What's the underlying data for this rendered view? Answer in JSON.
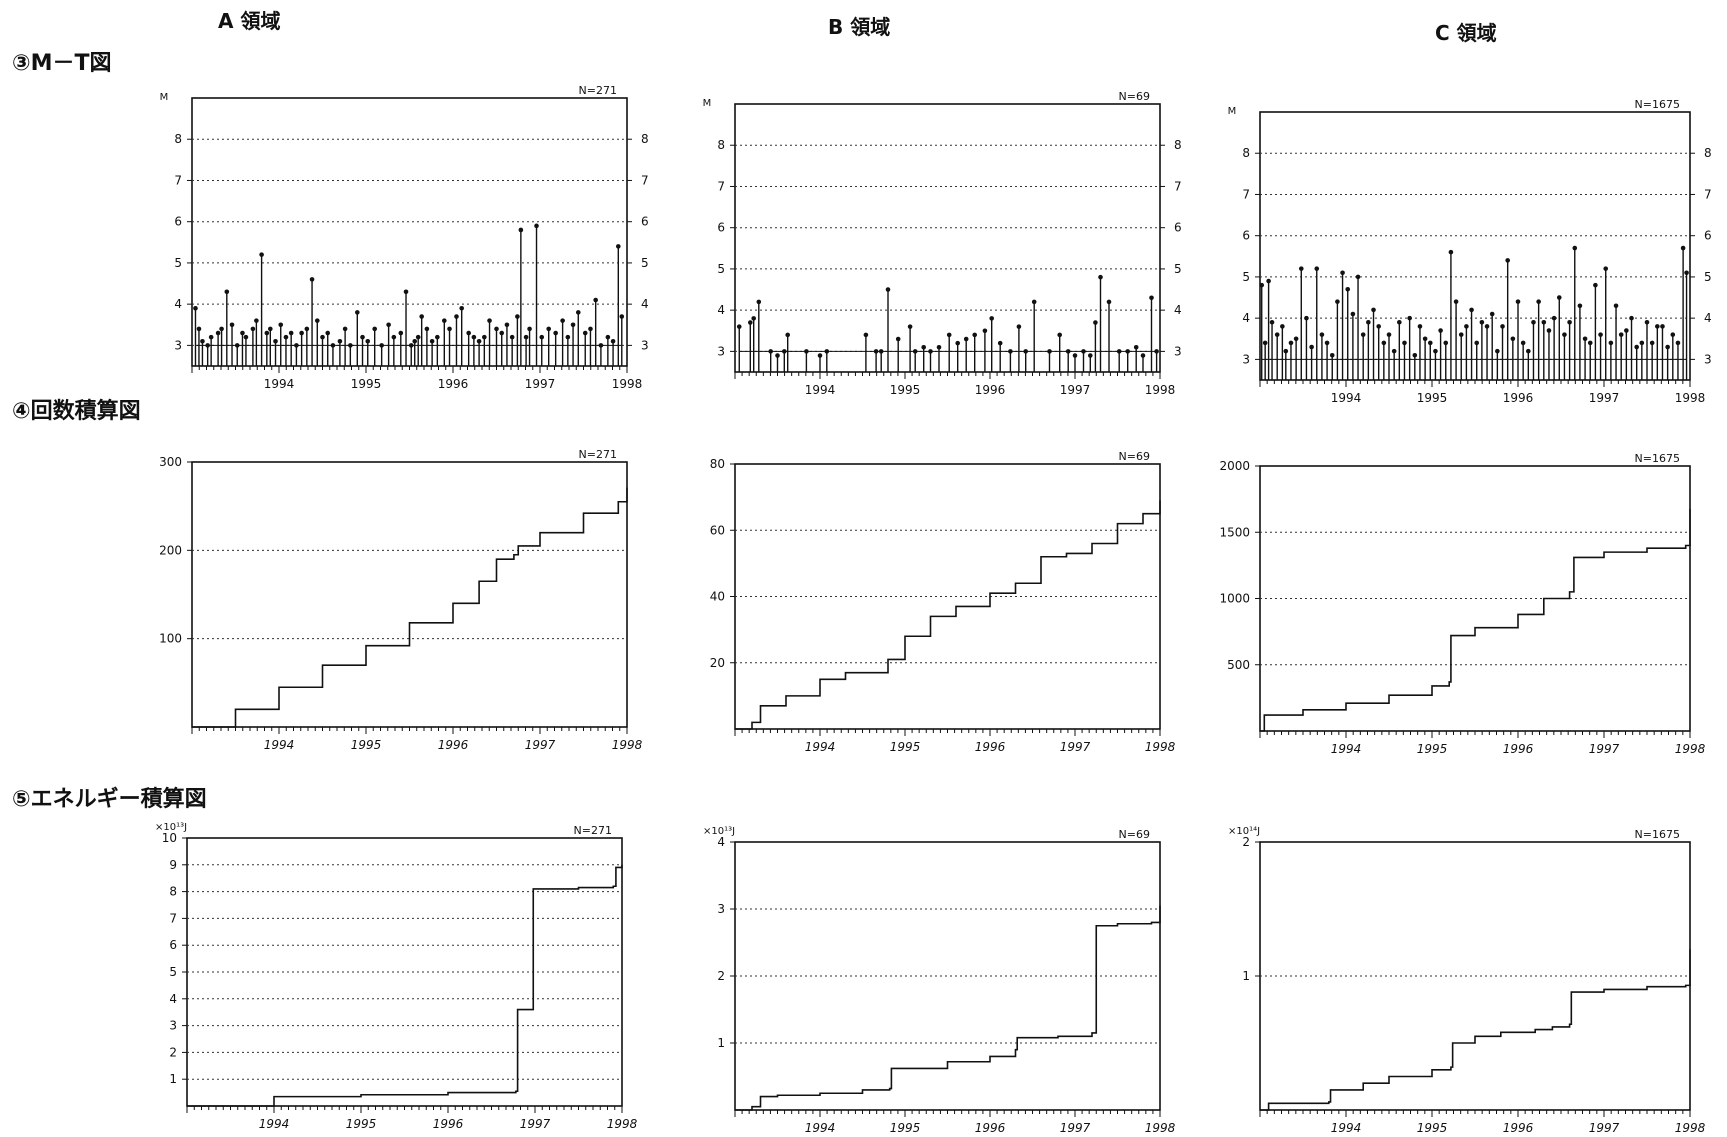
{
  "column_titles": [
    "A 領域",
    "B 領域",
    "C 領域"
  ],
  "row_titles": [
    "③M－T図",
    "④回数積算図",
    "⑤エネルギー積算図"
  ],
  "chart_data": [
    {
      "id": "mt-A",
      "row": 0,
      "col": 0,
      "type": "scatter",
      "style": "stem",
      "n_label": "N=271",
      "ylabel": "M",
      "ylim": [
        2.5,
        9
      ],
      "yticks": [
        3,
        4,
        5,
        6,
        7,
        8
      ],
      "right_ticks": true,
      "xlim": [
        1993.0,
        1998.0
      ],
      "xticks": [
        1994,
        1995,
        1996,
        1997,
        1998
      ],
      "x": [
        1993.04,
        1993.08,
        1993.12,
        1993.18,
        1993.22,
        1993.3,
        1993.34,
        1993.4,
        1993.46,
        1993.52,
        1993.58,
        1993.62,
        1993.7,
        1993.74,
        1993.8,
        1993.86,
        1993.9,
        1993.96,
        1994.02,
        1994.08,
        1994.14,
        1994.2,
        1994.26,
        1994.32,
        1994.38,
        1994.44,
        1994.5,
        1994.56,
        1994.62,
        1994.7,
        1994.76,
        1994.82,
        1994.9,
        1994.96,
        1995.02,
        1995.1,
        1995.18,
        1995.26,
        1995.32,
        1995.4,
        1995.46,
        1995.52,
        1995.56,
        1995.6,
        1995.64,
        1995.7,
        1995.76,
        1995.82,
        1995.9,
        1995.96,
        1996.04,
        1996.1,
        1996.18,
        1996.24,
        1996.3,
        1996.36,
        1996.42,
        1996.5,
        1996.56,
        1996.62,
        1996.68,
        1996.74,
        1996.78,
        1996.84,
        1996.88,
        1996.96,
        1997.02,
        1997.1,
        1997.18,
        1997.26,
        1997.32,
        1997.38,
        1997.44,
        1997.52,
        1997.58,
        1997.64,
        1997.7,
        1997.78,
        1997.84,
        1997.9,
        1997.94
      ],
      "y": [
        3.9,
        3.4,
        3.1,
        3.0,
        3.2,
        3.3,
        3.4,
        4.3,
        3.5,
        3.0,
        3.3,
        3.2,
        3.4,
        3.6,
        5.2,
        3.3,
        3.4,
        3.1,
        3.5,
        3.2,
        3.3,
        3.0,
        3.3,
        3.4,
        4.6,
        3.6,
        3.2,
        3.3,
        3.0,
        3.1,
        3.4,
        3.0,
        3.8,
        3.2,
        3.1,
        3.4,
        3.0,
        3.5,
        3.2,
        3.3,
        4.3,
        3.0,
        3.1,
        3.2,
        3.7,
        3.4,
        3.1,
        3.2,
        3.6,
        3.4,
        3.7,
        3.9,
        3.3,
        3.2,
        3.1,
        3.2,
        3.6,
        3.4,
        3.3,
        3.5,
        3.2,
        3.7,
        5.8,
        3.2,
        3.4,
        5.9,
        3.2,
        3.4,
        3.3,
        3.6,
        3.2,
        3.5,
        3.8,
        3.3,
        3.4,
        4.1,
        3.0,
        3.2,
        3.1,
        5.4,
        3.7
      ]
    },
    {
      "id": "mt-B",
      "row": 0,
      "col": 1,
      "type": "scatter",
      "style": "stem",
      "n_label": "N=69",
      "ylabel": "M",
      "ylim": [
        2.5,
        9
      ],
      "yticks": [
        3,
        4,
        5,
        6,
        7,
        8
      ],
      "right_ticks": true,
      "xlim": [
        1993.0,
        1998.0
      ],
      "xticks": [
        1994,
        1995,
        1996,
        1997,
        1998
      ],
      "x": [
        1993.05,
        1993.18,
        1993.22,
        1993.28,
        1993.42,
        1993.5,
        1993.58,
        1993.62,
        1993.84,
        1994.0,
        1994.08,
        1994.54,
        1994.66,
        1994.72,
        1994.8,
        1994.92,
        1995.06,
        1995.12,
        1995.22,
        1995.3,
        1995.4,
        1995.52,
        1995.62,
        1995.72,
        1995.82,
        1995.94,
        1996.02,
        1996.12,
        1996.24,
        1996.34,
        1996.42,
        1996.52,
        1996.7,
        1996.82,
        1996.92,
        1997.0,
        1997.1,
        1997.18,
        1997.24,
        1997.3,
        1997.4,
        1997.52,
        1997.62,
        1997.72,
        1997.8,
        1997.9,
        1997.96
      ],
      "y": [
        3.6,
        3.7,
        3.8,
        4.2,
        3.0,
        2.9,
        3.0,
        3.4,
        3.0,
        2.9,
        3.0,
        3.4,
        3.0,
        3.0,
        4.5,
        3.3,
        3.6,
        3.0,
        3.1,
        3.0,
        3.1,
        3.4,
        3.2,
        3.3,
        3.4,
        3.5,
        3.8,
        3.2,
        3.0,
        3.6,
        3.0,
        4.2,
        3.0,
        3.4,
        3.0,
        2.9,
        3.0,
        2.9,
        3.7,
        4.8,
        4.2,
        3.0,
        3.0,
        3.1,
        2.9,
        4.3,
        3.0
      ]
    },
    {
      "id": "mt-C",
      "row": 0,
      "col": 2,
      "type": "scatter",
      "style": "stem",
      "n_label": "N=1675",
      "ylabel": "M",
      "ylim": [
        2.5,
        9
      ],
      "yticks": [
        3,
        4,
        5,
        6,
        7,
        8
      ],
      "right_ticks": true,
      "xlim": [
        1993.0,
        1998.0
      ],
      "xticks": [
        1994,
        1995,
        1996,
        1997,
        1998
      ],
      "x": [
        1993.02,
        1993.06,
        1993.1,
        1993.14,
        1993.2,
        1993.26,
        1993.3,
        1993.36,
        1993.42,
        1993.48,
        1993.54,
        1993.6,
        1993.66,
        1993.72,
        1993.78,
        1993.84,
        1993.9,
        1993.96,
        1994.02,
        1994.08,
        1994.14,
        1994.2,
        1994.26,
        1994.32,
        1994.38,
        1994.44,
        1994.5,
        1994.56,
        1994.62,
        1994.68,
        1994.74,
        1994.8,
        1994.86,
        1994.92,
        1994.98,
        1995.04,
        1995.1,
        1995.16,
        1995.22,
        1995.28,
        1995.34,
        1995.4,
        1995.46,
        1995.52,
        1995.58,
        1995.64,
        1995.7,
        1995.76,
        1995.82,
        1995.88,
        1995.94,
        1996.0,
        1996.06,
        1996.12,
        1996.18,
        1996.24,
        1996.3,
        1996.36,
        1996.42,
        1996.48,
        1996.54,
        1996.6,
        1996.66,
        1996.72,
        1996.78,
        1996.84,
        1996.9,
        1996.96,
        1997.02,
        1997.08,
        1997.14,
        1997.2,
        1997.26,
        1997.32,
        1997.38,
        1997.44,
        1997.5,
        1997.56,
        1997.62,
        1997.68,
        1997.74,
        1997.8,
        1997.86,
        1997.92,
        1997.96
      ],
      "y": [
        4.8,
        3.4,
        4.9,
        3.9,
        3.6,
        3.8,
        3.2,
        3.4,
        3.5,
        5.2,
        4.0,
        3.3,
        5.2,
        3.6,
        3.4,
        3.1,
        4.4,
        5.1,
        4.7,
        4.1,
        5.0,
        3.6,
        3.9,
        4.2,
        3.8,
        3.4,
        3.6,
        3.2,
        3.9,
        3.4,
        4.0,
        3.1,
        3.8,
        3.5,
        3.4,
        3.2,
        3.7,
        3.4,
        5.6,
        4.4,
        3.6,
        3.8,
        4.2,
        3.4,
        3.9,
        3.8,
        4.1,
        3.2,
        3.8,
        5.4,
        3.5,
        4.4,
        3.4,
        3.2,
        3.9,
        4.4,
        3.9,
        3.7,
        4.0,
        4.5,
        3.6,
        3.9,
        5.7,
        4.3,
        3.5,
        3.4,
        4.8,
        3.6,
        5.2,
        3.4,
        4.3,
        3.6,
        3.7,
        4.0,
        3.3,
        3.4,
        3.9,
        3.4,
        3.8,
        3.8,
        3.3,
        3.6,
        3.4,
        5.7,
        5.1
      ]
    },
    {
      "id": "cnt-A",
      "row": 1,
      "col": 1,
      "type": "line",
      "style": "step",
      "n_label": "N=271",
      "ylim": [
        0,
        300
      ],
      "yticks": [
        100,
        200,
        300
      ],
      "xlim": [
        1993.0,
        1998.0
      ],
      "xticks": [
        1994,
        1995,
        1996,
        1997,
        1998
      ],
      "x": [
        1993.0,
        1993.5,
        1994.0,
        1994.5,
        1995.0,
        1995.5,
        1996.0,
        1996.3,
        1996.5,
        1996.7,
        1996.75,
        1997.0,
        1997.5,
        1997.9,
        1998.0
      ],
      "y": [
        0,
        20,
        45,
        70,
        92,
        118,
        140,
        165,
        190,
        195,
        205,
        220,
        242,
        255,
        271
      ]
    },
    {
      "id": "cnt-B",
      "row": 1,
      "col": 1,
      "type": "line",
      "style": "step",
      "n_label": "N=69",
      "ylim": [
        0,
        80
      ],
      "yticks": [
        20,
        40,
        60,
        80
      ],
      "xlim": [
        1993.0,
        1998.0
      ],
      "xticks": [
        1994,
        1995,
        1996,
        1997,
        1998
      ],
      "x": [
        1993.0,
        1993.2,
        1993.3,
        1993.6,
        1994.0,
        1994.3,
        1994.6,
        1994.8,
        1995.0,
        1995.3,
        1995.6,
        1996.0,
        1996.3,
        1996.6,
        1996.9,
        1997.2,
        1997.5,
        1997.8,
        1998.0
      ],
      "y": [
        0,
        2,
        7,
        10,
        15,
        17,
        17,
        21,
        28,
        34,
        37,
        41,
        44,
        52,
        53,
        56,
        62,
        65,
        69
      ]
    },
    {
      "id": "cnt-C",
      "row": 1,
      "col": 2,
      "type": "line",
      "style": "step",
      "n_label": "N=1675",
      "ylim": [
        0,
        2000
      ],
      "yticks": [
        500,
        1000,
        1500,
        2000
      ],
      "ytick_labels": [
        "500",
        "1000",
        "1500",
        "2000"
      ],
      "xlim": [
        1993.0,
        1998.0
      ],
      "xticks": [
        1994,
        1995,
        1996,
        1997,
        1998
      ],
      "x": [
        1993.0,
        1993.05,
        1993.5,
        1994.0,
        1994.5,
        1995.0,
        1995.2,
        1995.22,
        1995.5,
        1996.0,
        1996.3,
        1996.6,
        1996.65,
        1997.0,
        1997.5,
        1997.95,
        1998.0
      ],
      "y": [
        0,
        120,
        160,
        210,
        270,
        340,
        370,
        720,
        780,
        880,
        1000,
        1050,
        1310,
        1350,
        1380,
        1400,
        1675
      ]
    },
    {
      "id": "en-A",
      "row": 2,
      "col": 0,
      "type": "line",
      "style": "step",
      "n_label": "N=271",
      "unit_label": "×10¹³J",
      "ylim": [
        0,
        10
      ],
      "yticks": [
        1,
        2,
        3,
        4,
        5,
        6,
        7,
        8,
        9,
        10
      ],
      "xlim": [
        1993.0,
        1998.0
      ],
      "xticks": [
        1994,
        1995,
        1996,
        1997,
        1998
      ],
      "x": [
        1993.0,
        1993.9,
        1994.0,
        1995.0,
        1996.0,
        1996.78,
        1996.8,
        1996.95,
        1996.98,
        1997.5,
        1997.9,
        1997.93,
        1998.0
      ],
      "y": [
        0,
        0,
        0.35,
        0.42,
        0.5,
        0.55,
        3.6,
        3.6,
        8.1,
        8.15,
        8.2,
        8.9,
        9.0
      ]
    },
    {
      "id": "en-B",
      "row": 2,
      "col": 1,
      "type": "line",
      "style": "step",
      "n_label": "N=69",
      "unit_label": "×10¹³J",
      "ylim": [
        0,
        4
      ],
      "yticks": [
        1,
        2,
        3,
        4
      ],
      "xlim": [
        1993.0,
        1998.0
      ],
      "xticks": [
        1994,
        1995,
        1996,
        1997,
        1998
      ],
      "x": [
        1993.0,
        1993.2,
        1993.3,
        1993.5,
        1994.0,
        1994.5,
        1994.82,
        1994.84,
        1995.5,
        1996.0,
        1996.3,
        1996.32,
        1996.8,
        1997.2,
        1997.25,
        1997.5,
        1997.9,
        1998.0
      ],
      "y": [
        0,
        0.05,
        0.2,
        0.22,
        0.25,
        0.3,
        0.32,
        0.62,
        0.72,
        0.8,
        0.9,
        1.08,
        1.1,
        1.15,
        2.75,
        2.78,
        2.8,
        3.05
      ]
    },
    {
      "id": "en-C",
      "row": 2,
      "col": 2,
      "type": "line",
      "style": "step",
      "n_label": "N=1675",
      "unit_label": "×10¹⁴J",
      "ylim": [
        0,
        2
      ],
      "yticks": [
        1,
        2
      ],
      "xlim": [
        1993.0,
        1998.0
      ],
      "xticks": [
        1994,
        1995,
        1996,
        1997,
        1998
      ],
      "x": [
        1993.0,
        1993.1,
        1993.8,
        1993.82,
        1994.2,
        1994.5,
        1995.0,
        1995.22,
        1995.24,
        1995.5,
        1995.8,
        1996.2,
        1996.4,
        1996.6,
        1996.62,
        1997.0,
        1997.5,
        1997.95,
        1998.0
      ],
      "y": [
        0,
        0.05,
        0.06,
        0.15,
        0.2,
        0.25,
        0.3,
        0.32,
        0.5,
        0.55,
        0.58,
        0.6,
        0.62,
        0.64,
        0.88,
        0.9,
        0.92,
        0.93,
        1.2
      ]
    }
  ]
}
